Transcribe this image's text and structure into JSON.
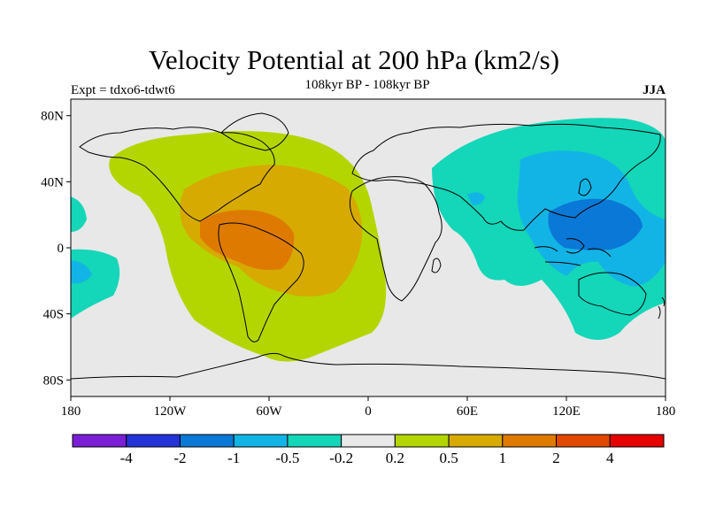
{
  "title": "Velocity Potential at 200 hPa (km2/s)",
  "subtitle": "108kyr BP - 108kyr BP",
  "experiment": "Expt = tdxo6-tdwt6",
  "season": "JJA",
  "map": {
    "lon_range": [
      -180,
      180
    ],
    "lat_range": [
      -90,
      90
    ],
    "lat_ticks": [
      {
        "value": 80,
        "label": "80N"
      },
      {
        "value": 40,
        "label": "40N"
      },
      {
        "value": 0,
        "label": "0"
      },
      {
        "value": -40,
        "label": "40S"
      },
      {
        "value": -80,
        "label": "80S"
      }
    ],
    "lon_ticks": [
      {
        "value": -180,
        "label": "180"
      },
      {
        "value": -120,
        "label": "120W"
      },
      {
        "value": -60,
        "label": "60W"
      },
      {
        "value": 0,
        "label": "0"
      },
      {
        "value": 60,
        "label": "60E"
      },
      {
        "value": 120,
        "label": "120E"
      },
      {
        "value": 180,
        "label": "180"
      }
    ]
  },
  "colorbar": {
    "colors": [
      "#7a1fd6",
      "#2433d6",
      "#0a78d6",
      "#12b4e6",
      "#14d6b8",
      "#e8e8e8",
      "#b4d600",
      "#d6aa00",
      "#de7a00",
      "#e04800",
      "#e60000"
    ],
    "labels": [
      "-4",
      "-2",
      "-1",
      "-0.5",
      "-0.2",
      "0.2",
      "0.5",
      "1",
      "2",
      "4"
    ]
  },
  "colors": {
    "background": "#e8e8e8",
    "coast": "#000000"
  }
}
